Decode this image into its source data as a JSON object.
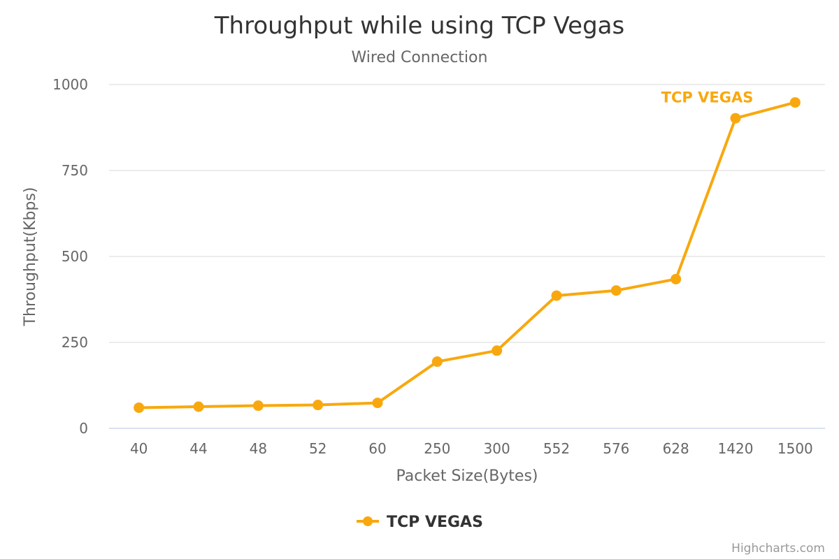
{
  "chart_data": {
    "type": "line",
    "title": "Throughput while using TCP Vegas",
    "subtitle": "Wired Connection",
    "xlabel": "Packet Size(Bytes)",
    "ylabel": "Throughput(Kbps)",
    "categories": [
      "40",
      "44",
      "48",
      "52",
      "60",
      "250",
      "300",
      "552",
      "576",
      "628",
      "1420",
      "1500"
    ],
    "series": [
      {
        "name": "TCP VEGAS",
        "color": "#F8A80E",
        "values": [
          60,
          63,
          66,
          68,
          74,
          194,
          226,
          386,
          401,
          434,
          902,
          948
        ]
      }
    ],
    "ylim": [
      0,
      1000
    ],
    "yticks": [
      0,
      250,
      500,
      750,
      1000
    ],
    "grid": true,
    "legend_position": "bottom-center",
    "series_label": "TCP VEGAS",
    "credits": "Highcharts.com"
  }
}
